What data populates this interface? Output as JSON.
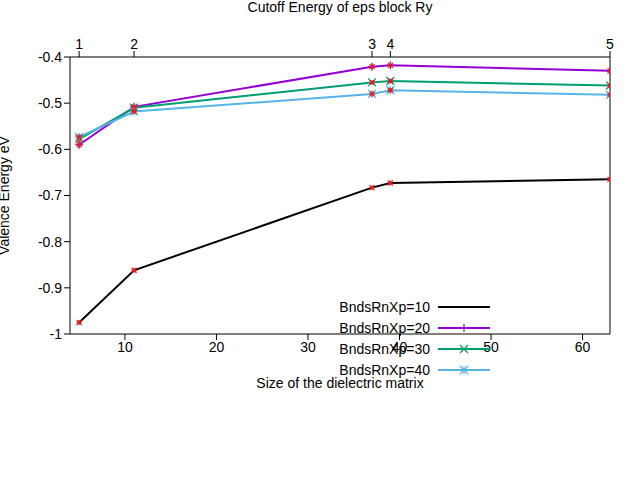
{
  "chart_data": {
    "type": "line",
    "xlabel": "Size of the dielectric matrix",
    "ylabel": "Valence  Energy eV",
    "x2label": "Cutoff Energy of eps block Ry",
    "x": [
      5,
      11,
      37,
      39,
      63
    ],
    "series": [
      {
        "name": "BndsRnXp=10",
        "color": "#000000",
        "marker": "none",
        "values": [
          -0.975,
          -0.862,
          -0.683,
          -0.673,
          -0.665
        ]
      },
      {
        "name": "BndsRnXp=20",
        "color": "#9400d3",
        "marker": "plus",
        "values": [
          -0.59,
          -0.508,
          -0.421,
          -0.418,
          -0.43
        ]
      },
      {
        "name": "BndsRnXp=30",
        "color": "#009e73",
        "marker": "cross",
        "values": [
          -0.578,
          -0.51,
          -0.455,
          -0.452,
          -0.462
        ]
      },
      {
        "name": "BndsRnXp=40",
        "color": "#56b4e9",
        "marker": "star",
        "values": [
          -0.573,
          -0.518,
          -0.48,
          -0.472,
          -0.482
        ]
      }
    ],
    "xlim": [
      4,
      63
    ],
    "xticks": [
      10,
      20,
      30,
      40,
      50,
      60
    ],
    "x2ticks": [
      {
        "value": 5,
        "label": "1"
      },
      {
        "value": 11,
        "label": "2"
      },
      {
        "value": 37,
        "label": "3"
      },
      {
        "value": 39,
        "label": "4"
      },
      {
        "value": 63,
        "label": "5"
      }
    ],
    "ylim": [
      -1,
      -0.4
    ],
    "yticks": [
      -1,
      -0.9,
      -0.8,
      -0.7,
      -0.6,
      -0.5,
      -0.4
    ],
    "grid": false,
    "legend": "lower right"
  }
}
